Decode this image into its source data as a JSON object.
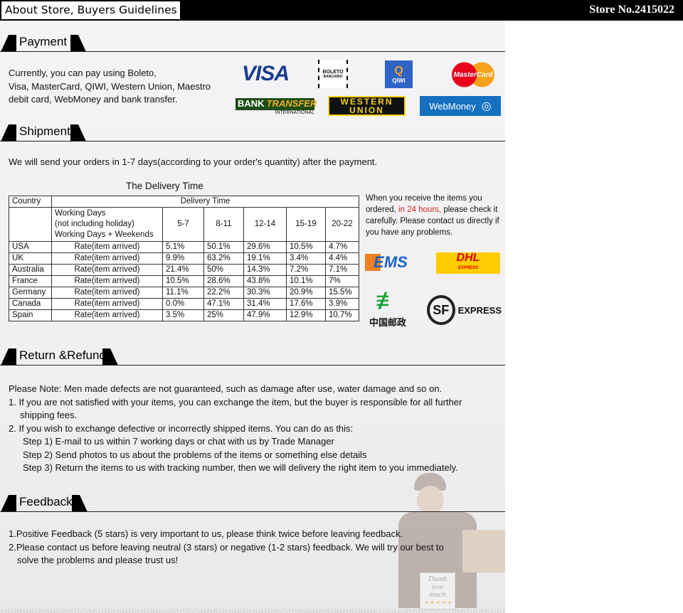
{
  "header": {
    "title": "About Store, Buyers Guidelines",
    "store_no": "Store No.2415022"
  },
  "payment": {
    "heading": "Payment",
    "text": [
      "Currently, you can pay using Boleto,",
      "Visa, MasterCard, QIWI, Western Union, Maestro",
      "debit card, WebMoney and bank transfer."
    ],
    "logos": {
      "visa": "VISA",
      "boleto": "BOLETO",
      "boleto_sub": "BANCARIO",
      "qiwi": "QIWI",
      "mastercard": "MasterCard",
      "bank": "BANK",
      "transfer": "TRANSFER",
      "international": "INTERNATIONAL",
      "western": "WESTERN",
      "union": "UNION",
      "webmoney": "WebMoney"
    }
  },
  "shipment": {
    "heading": "Shipment",
    "text": "We will send your orders in 1-7 days(according to your order's quantity) after the payment.",
    "table_title": "The Delivery Time",
    "table": {
      "col_country": "Country",
      "col_delivery": "Delivery Time",
      "sub_label": [
        "Working Days",
        "(not including holiday)",
        "Working Days + Weekends"
      ],
      "ranges": [
        "5-7",
        "8-11",
        "12-14",
        "15-19",
        "20-22"
      ],
      "rows": [
        {
          "country": "USA",
          "label": "Rate(item arrived)",
          "values": [
            "5.1%",
            "50.1%",
            "29.6%",
            "10.5%",
            "4.7%"
          ]
        },
        {
          "country": "UK",
          "label": "Rate(item arrived)",
          "values": [
            "9.9%",
            "63.2%",
            "19.1%",
            "3.4%",
            "4.4%"
          ]
        },
        {
          "country": "Australia",
          "label": "Rate(item arrived)",
          "values": [
            "21.4%",
            "50%",
            "14.3%",
            "7.2%",
            "7.1%"
          ]
        },
        {
          "country": "France",
          "label": "Rate(item arrived)",
          "values": [
            "10.5%",
            "28.6%",
            "43.8%",
            "10.1%",
            "7%"
          ]
        },
        {
          "country": "Germany",
          "label": "Rate(item arrived)",
          "values": [
            "11.1%",
            "22.2%",
            "30.3%",
            "20.9%",
            "15.5%"
          ]
        },
        {
          "country": "Canada",
          "label": "Rate(item arrived)",
          "values": [
            "0.0%",
            "47.1%",
            "31.4%",
            "17.6%",
            "3.9%"
          ]
        },
        {
          "country": "Spain",
          "label": "Rate(item arrived)",
          "values": [
            "3.5%",
            "25%",
            "47.9%",
            "12.9%",
            "10.7%"
          ]
        }
      ]
    },
    "note_a": "When you receive the items you ordered, ",
    "note_red": "in 24 hours,",
    "note_b": " please check it carefully. Please contact us directly if you have any problems.",
    "couriers": {
      "ems": "EMS",
      "dhl": "DHL",
      "dhl_sub": "EXPRESS",
      "china_post": "中国邮政",
      "sf": "SF",
      "sf_express": "EXPRESS"
    }
  },
  "refund": {
    "heading": "Return &Refund",
    "lines": [
      "Please Note: Men made defects are not guaranteed, such as damage after use, water  damage and so on.",
      "1. If you are not satisfied with your items, you can exchange the item, but the buyer is responsible for all further",
      "shipping fees.",
      "2. If you wish to exchange defective or incorrectly shipped items. You can do as this:",
      "Step 1) E-mail to us within 7 working days or chat with us by Trade Manager",
      "Step 2) Send photos to us about the problems of the items or something else details",
      "Step 3) Return the items to us with tracking number, then we will delivery the right item to you immediately."
    ]
  },
  "feedback": {
    "heading": "Feedback",
    "lines": [
      "1.Positive Feedback (5 stars) is very important to us, please think twice before leaving feedback.",
      "2.Please contact us before leaving neutral (3 stars) or negative (1-2 stars) feedback. We will try our best to",
      "solve the problems and please trust us!"
    ],
    "card": [
      "Thank",
      "you",
      "much"
    ]
  },
  "colors": {
    "accent_red": "#e02020",
    "visa_blue": "#1a3c8f",
    "webmoney_blue": "#1670c0"
  }
}
